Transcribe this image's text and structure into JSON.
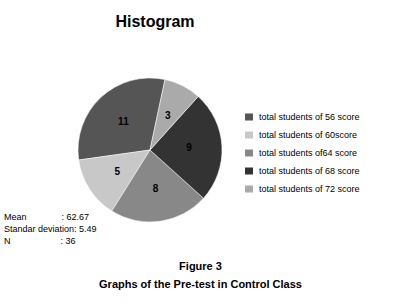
{
  "chart_data": {
    "type": "pie",
    "title": "Histogram",
    "categories": [
      "total students of 56 score",
      "total students of 60score",
      "total students of64 score",
      "total students of 68 score",
      "total students of 72 score"
    ],
    "values": [
      11,
      5,
      8,
      9,
      3
    ],
    "colors": [
      "#555555",
      "#c8c8c8",
      "#888888",
      "#333333",
      "#aaaaaa"
    ],
    "data_labels": true,
    "legend": "right",
    "annotations": [
      "Mean              : 62.67",
      "Standar deviation: 5.49",
      "N                    : 36"
    ],
    "caption": [
      "Figure 3",
      "Graphs of the Pre-test in Control Class"
    ]
  }
}
